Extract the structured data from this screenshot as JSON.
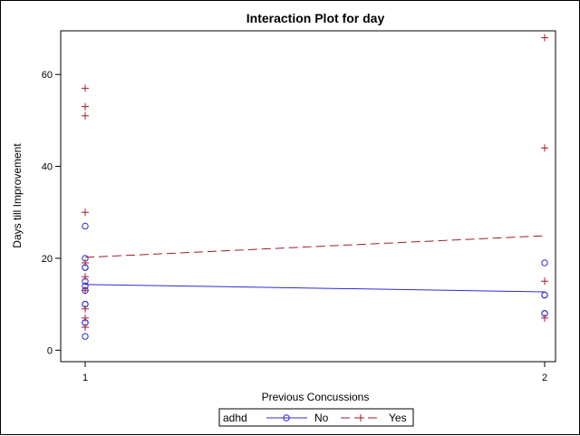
{
  "chart_data": {
    "type": "line",
    "title": "Interaction Plot for day",
    "xlabel": "Previous Concussions",
    "ylabel": "Days till Improvement",
    "x_categories": [
      "1",
      "2"
    ],
    "y_ticks": [
      0,
      20,
      40,
      60
    ],
    "ylim": [
      -2.5,
      69.5
    ],
    "grid": false,
    "legend": {
      "title": "adhd",
      "placement": "bottom-center",
      "entries": [
        "No",
        "Yes"
      ]
    },
    "series": [
      {
        "name": "No",
        "color": "#2b2bd6",
        "marker": "circle",
        "line_style": "solid",
        "mean_line": [
          14.3,
          12.7
        ],
        "points": {
          "1": [
            27,
            20,
            18,
            18,
            15,
            14,
            13,
            10,
            10,
            6,
            6,
            3
          ],
          "2": [
            19,
            12,
            12,
            8,
            8
          ]
        }
      },
      {
        "name": "Yes",
        "color": "#a01c2c",
        "marker": "plus",
        "line_style": "dashed",
        "mean_line": [
          20.2,
          24.9
        ],
        "points": {
          "1": [
            57,
            53,
            51,
            30,
            19,
            16,
            13,
            9,
            7,
            5
          ],
          "2": [
            68,
            44,
            15,
            7
          ]
        }
      }
    ]
  }
}
